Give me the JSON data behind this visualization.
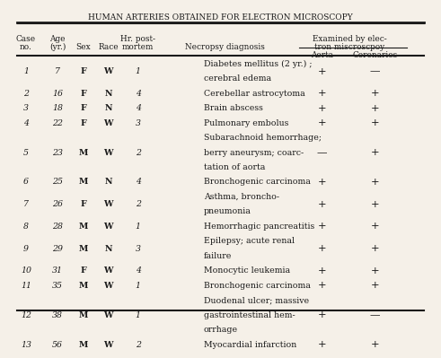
{
  "title": "HUMAN ARTERIES OBTAINED FOR ELECTRON MICROSCOPY",
  "header1": [
    "Case",
    "Age",
    "",
    "",
    "Hr. post-",
    "",
    "Examined by elec-"
  ],
  "header2": [
    "no.",
    "(yr.)",
    "Sex",
    "Race",
    "mortem",
    "Necropsy diagnosis",
    "tron miscroscpoy"
  ],
  "subheader": [
    "",
    "",
    "",
    "",
    "",
    "",
    "Aorta",
    "Coronaries"
  ],
  "rows": [
    {
      "case": "1",
      "age": "7",
      "sex": "F",
      "race": "W",
      "hr": "1",
      "diagnosis": "Diabetes mellitus (2 yr.) ;\ncerebral edema",
      "aorta": "+",
      "coronaries": "—"
    },
    {
      "case": "2",
      "age": "16",
      "sex": "F",
      "race": "N",
      "hr": "4",
      "diagnosis": "Cerebellar astrocytoma",
      "aorta": "+",
      "coronaries": "+"
    },
    {
      "case": "3",
      "age": "18",
      "sex": "F",
      "race": "N",
      "hr": "4",
      "diagnosis": "Brain abscess",
      "aorta": "+",
      "coronaries": "+"
    },
    {
      "case": "4",
      "age": "22",
      "sex": "F",
      "race": "W",
      "hr": "3",
      "diagnosis": "Pulmonary embolus",
      "aorta": "+",
      "coronaries": "+"
    },
    {
      "case": "5",
      "age": "23",
      "sex": "M",
      "race": "W",
      "hr": "2",
      "diagnosis": "Subarachnoid hemorrhage;\nberry aneurysm; coarc-\ntation of aorta",
      "aorta": "—",
      "coronaries": "+"
    },
    {
      "case": "6",
      "age": "25",
      "sex": "M",
      "race": "N",
      "hr": "4",
      "diagnosis": "Bronchogenic carcinoma",
      "aorta": "+",
      "coronaries": "+"
    },
    {
      "case": "7",
      "age": "26",
      "sex": "F",
      "race": "W",
      "hr": "2",
      "diagnosis": "Asthma, broncho-\npneumonia",
      "aorta": "+",
      "coronaries": "+"
    },
    {
      "case": "8",
      "age": "28",
      "sex": "M",
      "race": "W",
      "hr": "1",
      "diagnosis": "Hemorrhagic pancreatitis",
      "aorta": "+",
      "coronaries": "+"
    },
    {
      "case": "9",
      "age": "29",
      "sex": "M",
      "race": "N",
      "hr": "3",
      "diagnosis": "Epilepsy; acute renal\nfailure",
      "aorta": "+",
      "coronaries": "+"
    },
    {
      "case": "10",
      "age": "31",
      "sex": "F",
      "race": "W",
      "hr": "4",
      "diagnosis": "Monocytic leukemia",
      "aorta": "+",
      "coronaries": "+"
    },
    {
      "case": "11",
      "age": "35",
      "sex": "M",
      "race": "W",
      "hr": "1",
      "diagnosis": "Bronchogenic carcinoma",
      "aorta": "+",
      "coronaries": "+"
    },
    {
      "case": "12",
      "age": "38",
      "sex": "M",
      "race": "W",
      "hr": "1",
      "diagnosis": "Duodenal ulcer; massive\ngastrointestinal hem-\norrhage",
      "aorta": "+",
      "coronaries": "—"
    },
    {
      "case": "13",
      "age": "56",
      "sex": "M",
      "race": "W",
      "hr": "2",
      "diagnosis": "Myocardial infarction",
      "aorta": "+",
      "coronaries": "+"
    }
  ],
  "bg_color": "#f5f0e8",
  "text_color": "#1a1a1a",
  "font_size": 7.5
}
